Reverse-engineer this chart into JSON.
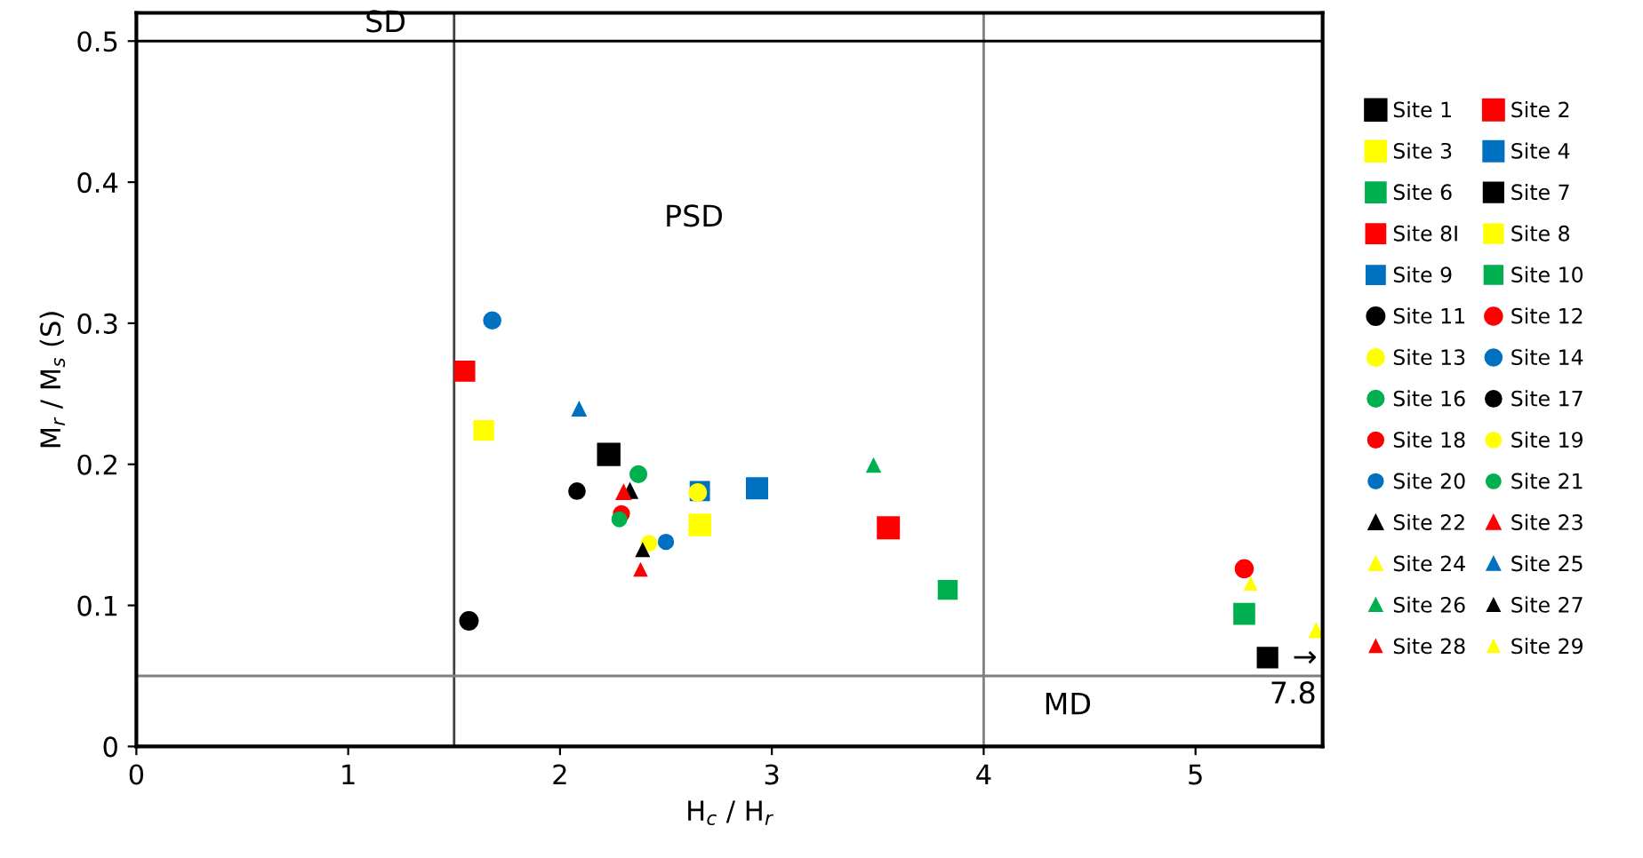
{
  "chart_data": {
    "type": "scatter",
    "xlabel": "H$_{c}$ / H$_{r}$",
    "ylabel": "M$_{r}$ / M$_{s}$ (S)",
    "xlim": [
      0,
      5.6
    ],
    "ylim": [
      0,
      0.52
    ],
    "xticks": [
      0,
      1,
      2,
      3,
      4,
      5
    ],
    "yticks": [
      0,
      0.1,
      0.2,
      0.3,
      0.4,
      0.5
    ],
    "grid": false,
    "legend": "right",
    "series": [
      {
        "name": "Site 1",
        "color": "#000000",
        "marker": "square",
        "x": [
          2.23
        ],
        "values": [
          0.207
        ]
      },
      {
        "name": "Site 2",
        "color": "#ff0000",
        "marker": "square",
        "x": [
          3.55
        ],
        "values": [
          0.155
        ]
      },
      {
        "name": "Site 3",
        "color": "#ffff00",
        "marker": "square",
        "x": [
          2.66
        ],
        "values": [
          0.157
        ]
      },
      {
        "name": "Site 4",
        "color": "#0070c0",
        "marker": "square",
        "x": [
          2.93
        ],
        "values": [
          0.183
        ]
      },
      {
        "name": "Site 6",
        "color": "#00b050",
        "marker": "square",
        "x": [
          5.23
        ],
        "values": [
          0.094
        ]
      },
      {
        "name": "Site 7",
        "color": "#000000",
        "marker": "square",
        "x": [
          5.34
        ],
        "values": [
          0.063
        ]
      },
      {
        "name": "Site 8I",
        "color": "#ff0000",
        "marker": "square",
        "x": [
          1.55
        ],
        "values": [
          0.266
        ]
      },
      {
        "name": "Site 8",
        "color": "#ffff00",
        "marker": "square",
        "x": [
          1.64
        ],
        "values": [
          0.224
        ]
      },
      {
        "name": "Site 9",
        "color": "#0070c0",
        "marker": "square",
        "x": [
          2.66
        ],
        "values": [
          0.181
        ]
      },
      {
        "name": "Site 10",
        "color": "#00b050",
        "marker": "square",
        "x": [
          3.83
        ],
        "values": [
          0.111
        ]
      },
      {
        "name": "Site 11",
        "color": "#000000",
        "marker": "circle",
        "x": [
          1.57
        ],
        "values": [
          0.089
        ]
      },
      {
        "name": "Site 12",
        "color": "#ff0000",
        "marker": "circle",
        "x": [
          5.23
        ],
        "values": [
          0.126
        ]
      },
      {
        "name": "Site 13",
        "color": "#ffff00",
        "marker": "circle",
        "x": [
          2.65
        ],
        "values": [
          0.18
        ]
      },
      {
        "name": "Site 14",
        "color": "#0070c0",
        "marker": "circle",
        "x": [
          1.68
        ],
        "values": [
          0.302
        ]
      },
      {
        "name": "Site 16",
        "color": "#00b050",
        "marker": "circle",
        "x": [
          2.37
        ],
        "values": [
          0.193
        ]
      },
      {
        "name": "Site 17",
        "color": "#000000",
        "marker": "circle",
        "x": [
          2.08
        ],
        "values": [
          0.181
        ]
      },
      {
        "name": "Site 18",
        "color": "#ff0000",
        "marker": "circle",
        "x": [
          2.29
        ],
        "values": [
          0.165
        ]
      },
      {
        "name": "Site 19",
        "color": "#ffff00",
        "marker": "circle",
        "x": [
          2.42
        ],
        "values": [
          0.144
        ]
      },
      {
        "name": "Site 20",
        "color": "#0070c0",
        "marker": "circle",
        "x": [
          2.5
        ],
        "values": [
          0.145
        ]
      },
      {
        "name": "Site 21",
        "color": "#00b050",
        "marker": "circle",
        "x": [
          2.28
        ],
        "values": [
          0.161
        ]
      },
      {
        "name": "Site 22",
        "color": "#000000",
        "marker": "triangle",
        "x": [
          2.33
        ],
        "values": [
          0.181
        ]
      },
      {
        "name": "Site 23",
        "color": "#ff0000",
        "marker": "triangle",
        "x": [
          2.3
        ],
        "values": [
          0.18
        ]
      },
      {
        "name": "Site 24",
        "color": "#ffff00",
        "marker": "triangle",
        "x": [
          5.57
        ],
        "values": [
          0.082
        ]
      },
      {
        "name": "Site 25",
        "color": "#0070c0",
        "marker": "triangle",
        "x": [
          2.09
        ],
        "values": [
          0.239
        ]
      },
      {
        "name": "Site 26",
        "color": "#00b050",
        "marker": "triangle",
        "x": [
          3.48
        ],
        "values": [
          0.199
        ]
      },
      {
        "name": "Site 27",
        "color": "#000000",
        "marker": "triangle",
        "x": [
          2.39
        ],
        "values": [
          0.139
        ]
      },
      {
        "name": "Site 28",
        "color": "#ff0000",
        "marker": "triangle",
        "x": [
          2.38
        ],
        "values": [
          0.125
        ]
      },
      {
        "name": "Site 29",
        "color": "#ffff00",
        "marker": "triangle",
        "x": [
          5.26
        ],
        "values": [
          0.115
        ]
      }
    ],
    "ref_lines": [
      {
        "axis": "x",
        "value": 1.5,
        "color": "#404040"
      },
      {
        "axis": "x",
        "value": 4,
        "color": "#808080"
      },
      {
        "axis": "y",
        "value": 0.5,
        "color": "#000000"
      },
      {
        "axis": "y",
        "value": 0.05,
        "color": "#808080"
      }
    ],
    "annotations": [
      "SD",
      "PSD",
      "MD",
      "→",
      "7.8"
    ]
  }
}
